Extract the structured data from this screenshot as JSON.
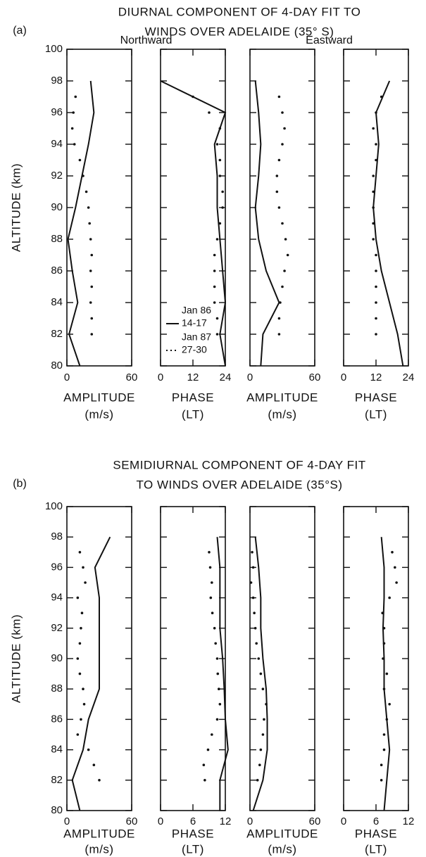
{
  "figures": [
    {
      "label": "(a)",
      "title": [
        "DIURNAL COMPONENT OF 4-DAY FIT TO",
        "WINDS OVER ADELAIDE (35° S)"
      ],
      "ylabel": "ALTITUDE (km)",
      "column_labels": [
        "Northward",
        "Eastward"
      ]
    },
    {
      "label": "(b)",
      "title": [
        "SEMIDIURNAL COMPONENT OF 4-DAY FIT",
        "TO WINDS OVER ADELAIDE (35°S)"
      ],
      "ylabel": "ALTITUDE (km)"
    }
  ],
  "chart_data": [
    {
      "type": "line",
      "xlabel": [
        "AMPLITUDE",
        "(m/s)"
      ],
      "xlim": [
        0,
        60
      ],
      "xticks": [
        0,
        60
      ],
      "ylim": [
        80,
        100
      ],
      "yticks": [
        80,
        82,
        84,
        86,
        88,
        90,
        92,
        94,
        96,
        98,
        100
      ],
      "series": [
        {
          "style": "solid",
          "color": "#111",
          "y": [
            98,
            96,
            94,
            92,
            90,
            88,
            86,
            84,
            82,
            80
          ],
          "values": [
            22,
            25,
            20,
            14,
            8,
            1,
            5,
            10,
            2,
            12
          ]
        },
        {
          "style": "dotted",
          "color": "#111",
          "y": [
            97,
            96,
            95,
            94,
            93,
            92,
            91,
            90,
            89,
            88,
            87,
            86,
            85,
            84,
            83,
            82
          ],
          "values": [
            8,
            6,
            5,
            7,
            12,
            15,
            18,
            20,
            21,
            22,
            23,
            22,
            23,
            22,
            23,
            23
          ]
        }
      ]
    },
    {
      "type": "line",
      "xlabel": [
        "PHASE",
        "(LT)"
      ],
      "xlim": [
        0,
        24
      ],
      "xticks": [
        0,
        12,
        24
      ],
      "ylim": [
        80,
        100
      ],
      "yticks": [
        80,
        82,
        84,
        86,
        88,
        90,
        92,
        94,
        96,
        98,
        100
      ],
      "legend": "lower-left",
      "series": [
        {
          "name": "Jan 86",
          "dates": "14-17",
          "style": "solid",
          "color": "#111",
          "y": [
            98,
            96,
            94,
            92,
            90,
            88,
            86,
            84,
            82,
            80
          ],
          "values": [
            0,
            24,
            20,
            21,
            21,
            22,
            23,
            24,
            22,
            24
          ]
        },
        {
          "name": "Jan 87",
          "dates": "27-30",
          "style": "dotted",
          "color": "#111",
          "y": [
            97,
            96,
            95,
            94,
            93,
            92,
            91,
            90,
            89,
            88,
            87,
            86,
            85,
            84,
            83,
            82
          ],
          "values": [
            12,
            18,
            22,
            21,
            22,
            22,
            23,
            23,
            22,
            21,
            20,
            20,
            20,
            20,
            21,
            21
          ]
        }
      ]
    },
    {
      "type": "line",
      "xlabel": [
        "AMPLITUDE",
        "(m/s)"
      ],
      "xlim": [
        0,
        60
      ],
      "xticks": [
        0,
        60
      ],
      "ylim": [
        80,
        100
      ],
      "yticks": [
        80,
        82,
        84,
        86,
        88,
        90,
        92,
        94,
        96,
        98,
        100
      ],
      "series": [
        {
          "style": "solid",
          "color": "#111",
          "y": [
            98,
            96,
            94,
            92,
            90,
            88,
            86,
            84,
            82,
            80
          ],
          "values": [
            5,
            8,
            10,
            8,
            5,
            8,
            15,
            27,
            12,
            10
          ]
        },
        {
          "style": "dotted",
          "color": "#111",
          "y": [
            97,
            96,
            95,
            94,
            93,
            92,
            91,
            90,
            89,
            88,
            87,
            86,
            85,
            84,
            83,
            82
          ],
          "values": [
            27,
            30,
            32,
            30,
            27,
            25,
            25,
            27,
            30,
            33,
            35,
            32,
            30,
            28,
            27,
            27
          ]
        }
      ]
    },
    {
      "type": "line",
      "xlabel": [
        "PHASE",
        "(LT)"
      ],
      "xlim": [
        0,
        24
      ],
      "xticks": [
        0,
        12,
        24
      ],
      "ylim": [
        80,
        100
      ],
      "yticks": [
        80,
        82,
        84,
        86,
        88,
        90,
        92,
        94,
        96,
        98,
        100
      ],
      "series": [
        {
          "style": "solid",
          "color": "#111",
          "y": [
            98,
            96,
            94,
            92,
            90,
            88,
            86,
            84,
            82,
            80
          ],
          "values": [
            17,
            12,
            13,
            12,
            11,
            12,
            14,
            17,
            20,
            22
          ]
        },
        {
          "style": "dotted",
          "color": "#111",
          "y": [
            97,
            96,
            95,
            94,
            93,
            92,
            91,
            90,
            89,
            88,
            87,
            86,
            85,
            84,
            83,
            82
          ],
          "values": [
            14,
            12,
            11,
            12,
            12,
            11,
            11,
            11,
            11,
            11,
            12,
            12,
            12,
            12,
            12,
            12
          ]
        }
      ]
    },
    {
      "type": "line",
      "xlabel": [
        "AMPLITUDE",
        "(m/s)"
      ],
      "xlim": [
        0,
        60
      ],
      "xticks": [
        0,
        60
      ],
      "ylim": [
        80,
        100
      ],
      "yticks": [
        80,
        82,
        84,
        86,
        88,
        90,
        92,
        94,
        96,
        98,
        100
      ],
      "series": [
        {
          "style": "solid",
          "color": "#111",
          "y": [
            98,
            96,
            94,
            92,
            90,
            88,
            86,
            84,
            82,
            80
          ],
          "values": [
            40,
            26,
            30,
            30,
            30,
            30,
            20,
            15,
            5,
            12
          ]
        },
        {
          "style": "dotted",
          "color": "#111",
          "y": [
            97,
            96,
            95,
            94,
            93,
            92,
            91,
            90,
            89,
            88,
            87,
            86,
            85,
            84,
            83,
            82
          ],
          "values": [
            12,
            15,
            17,
            10,
            14,
            13,
            12,
            10,
            12,
            15,
            16,
            13,
            10,
            20,
            25,
            30
          ]
        }
      ]
    },
    {
      "type": "line",
      "xlabel": [
        "PHASE",
        "(LT)"
      ],
      "xlim": [
        0,
        12
      ],
      "xticks": [
        0,
        6,
        12
      ],
      "ylim": [
        80,
        100
      ],
      "yticks": [
        80,
        82,
        84,
        86,
        88,
        90,
        92,
        94,
        96,
        98,
        100
      ],
      "series": [
        {
          "style": "solid",
          "color": "#111",
          "y": [
            98,
            96,
            94,
            92,
            90,
            88,
            86,
            84,
            82,
            80
          ],
          "values": [
            10.5,
            11,
            11,
            11,
            11.5,
            11.8,
            12,
            12.5,
            11,
            11
          ]
        },
        {
          "style": "dotted",
          "color": "#111",
          "y": [
            97,
            96,
            95,
            94,
            93,
            92,
            91,
            90,
            89,
            88,
            87,
            86,
            85,
            84,
            83,
            82
          ],
          "values": [
            9,
            9.2,
            9.5,
            9.3,
            9.6,
            10,
            10.2,
            10.5,
            10.6,
            10.8,
            11,
            10.5,
            9.5,
            8.8,
            8,
            8.2
          ]
        }
      ]
    },
    {
      "type": "line",
      "xlabel": [
        "AMPLITUDE",
        "(m/s)"
      ],
      "xlim": [
        0,
        60
      ],
      "xticks": [
        0,
        60
      ],
      "ylim": [
        80,
        100
      ],
      "yticks": [
        80,
        82,
        84,
        86,
        88,
        90,
        92,
        94,
        96,
        98,
        100
      ],
      "series": [
        {
          "style": "solid",
          "color": "#111",
          "y": [
            98,
            96,
            94,
            92,
            90,
            88,
            86,
            84,
            82,
            80
          ],
          "values": [
            5,
            8,
            10,
            10,
            12,
            15,
            16,
            16,
            12,
            3
          ]
        },
        {
          "style": "dotted",
          "color": "#111",
          "y": [
            97,
            96,
            95,
            94,
            93,
            92,
            91,
            90,
            89,
            88,
            87,
            86,
            85,
            84,
            83,
            82
          ],
          "values": [
            2,
            3,
            1,
            3,
            4,
            5,
            6,
            8,
            10,
            12,
            15,
            13,
            12,
            10,
            9,
            7
          ]
        }
      ]
    },
    {
      "type": "line",
      "xlabel": [
        "PHASE",
        "(LT)"
      ],
      "xlim": [
        0,
        12
      ],
      "xticks": [
        0,
        6,
        12
      ],
      "ylim": [
        80,
        100
      ],
      "yticks": [
        80,
        82,
        84,
        86,
        88,
        90,
        92,
        94,
        96,
        98,
        100
      ],
      "series": [
        {
          "style": "solid",
          "color": "#111",
          "y": [
            98,
            96,
            94,
            92,
            90,
            88,
            86,
            84,
            82,
            80
          ],
          "values": [
            7,
            7.5,
            7.5,
            7.3,
            7.5,
            7.5,
            8,
            8.5,
            8,
            7.5
          ]
        },
        {
          "style": "dotted",
          "color": "#111",
          "y": [
            97,
            96,
            95,
            94,
            93,
            92,
            91,
            90,
            89,
            88,
            87,
            86,
            85,
            84,
            83,
            82
          ],
          "values": [
            9,
            9.5,
            9.8,
            8.5,
            7.2,
            7.5,
            7.5,
            7.3,
            8,
            7.5,
            8.5,
            8,
            7.5,
            7.5,
            7,
            7
          ]
        }
      ]
    }
  ]
}
